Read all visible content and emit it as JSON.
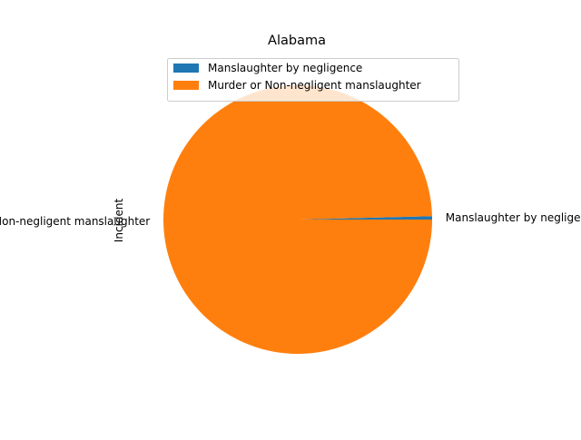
{
  "chart_data": {
    "type": "pie",
    "title": "Alabama",
    "ylabel": "Incident",
    "xlabel": "",
    "slices": [
      {
        "label": "Manslaughter by negligence",
        "value": 0.4,
        "color": "#1f77b4"
      },
      {
        "label": "Murder or Non-negligent manslaughter",
        "value": 99.6,
        "color": "#ff7f0e"
      }
    ],
    "legend": {
      "placement": "top-center",
      "entries": [
        "Manslaughter by negligence",
        "Murder or Non-negligent manslaughter"
      ]
    },
    "start_angle": "0° (3 o'clock), counter-clockwise",
    "grid": false
  }
}
